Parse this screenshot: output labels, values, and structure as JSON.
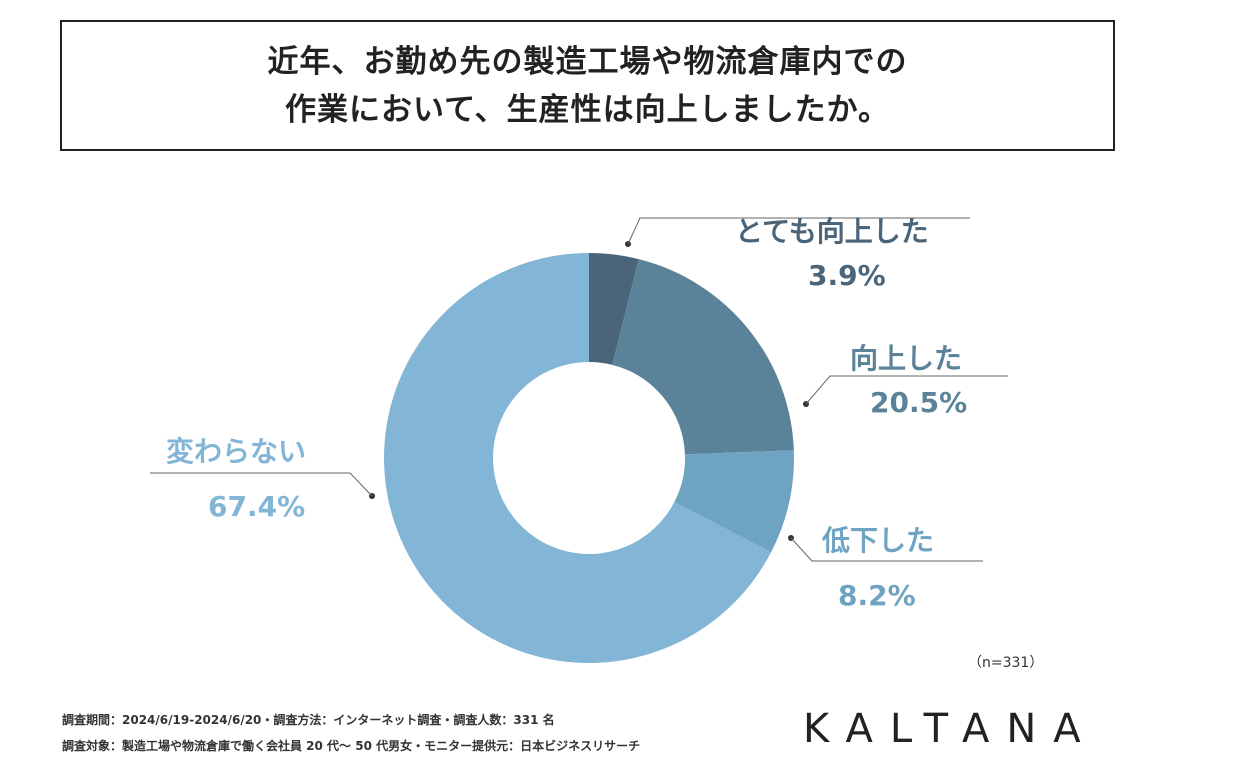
{
  "title": {
    "line1": "近年、お勤め先の製造工場や物流倉庫内での",
    "line2": "作業において、生産性は向上しましたか。"
  },
  "chart_data": {
    "type": "pie",
    "donut": true,
    "slices": [
      {
        "label": "とても向上した",
        "value": 3.9,
        "display": "3.9%",
        "color": "#4a6479"
      },
      {
        "label": "向上した",
        "value": 20.5,
        "display": "20.5%",
        "color": "#5a8298"
      },
      {
        "label": "低下した",
        "value": 8.2,
        "display": "8.2%",
        "color": "#6fa3c2"
      },
      {
        "label": "変わらない",
        "value": 67.4,
        "display": "67.4%",
        "color": "#82b5d6"
      }
    ],
    "sample_size": "（n=331）"
  },
  "footer": {
    "line1": "調査期間：2024/6/19-2024/6/20・調査方法：インターネット調査・調査人数：331 名",
    "line2": "調査対象：製造工場や物流倉庫で働く会社員 20 代〜 50 代男女・モニター提供元：日本ビジネスリサーチ"
  },
  "logo": "KALTANA"
}
